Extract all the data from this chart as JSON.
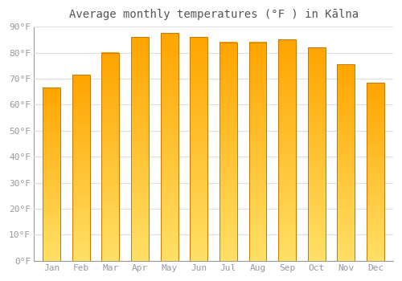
{
  "title": "Average monthly temperatures (°F ) in Kālna",
  "months": [
    "Jan",
    "Feb",
    "Mar",
    "Apr",
    "May",
    "Jun",
    "Jul",
    "Aug",
    "Sep",
    "Oct",
    "Nov",
    "Dec"
  ],
  "values": [
    66.5,
    71.5,
    80.0,
    86.0,
    87.5,
    86.0,
    84.0,
    84.0,
    85.0,
    82.0,
    75.5,
    68.5
  ],
  "bar_color_light": "#FFE066",
  "bar_color_dark": "#FFA500",
  "bar_edge_color": "#CC7700",
  "background_color": "#ffffff",
  "grid_color": "#e0e0e0",
  "ylim": [
    0,
    90
  ],
  "yticks": [
    0,
    10,
    20,
    30,
    40,
    50,
    60,
    70,
    80,
    90
  ],
  "ytick_labels": [
    "0°F",
    "10°F",
    "20°F",
    "30°F",
    "40°F",
    "50°F",
    "60°F",
    "70°F",
    "80°F",
    "90°F"
  ],
  "tick_color": "#999999",
  "title_fontsize": 10,
  "tick_fontsize": 8,
  "bar_width": 0.6,
  "gradient_steps": 100
}
